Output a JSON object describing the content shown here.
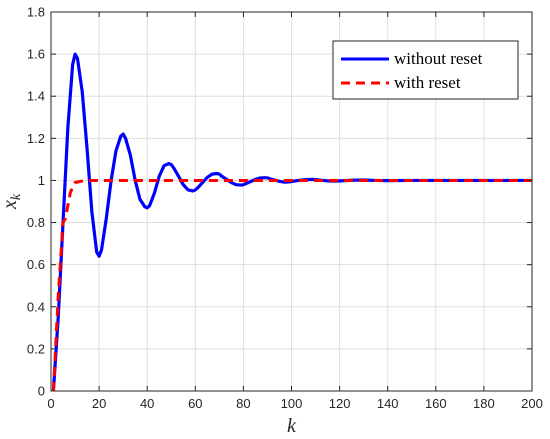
{
  "chart_data": {
    "type": "line",
    "xlabel": "k",
    "ylabel": {
      "base": "x",
      "sub": "k"
    },
    "xlim": [
      0,
      200
    ],
    "ylim": [
      0,
      1.8
    ],
    "xticks": [
      0,
      20,
      40,
      60,
      80,
      100,
      120,
      140,
      160,
      180,
      200
    ],
    "yticks": [
      0,
      0.2,
      0.4,
      0.6,
      0.8,
      1,
      1.2,
      1.4,
      1.6,
      1.8
    ],
    "xtick_labels": [
      "0",
      "20",
      "40",
      "60",
      "80",
      "100",
      "120",
      "140",
      "160",
      "180",
      "200"
    ],
    "ytick_labels": [
      "0",
      "0.2",
      "0.4",
      "0.6",
      "0.8",
      "1",
      "1.2",
      "1.4",
      "1.6",
      "1.8"
    ],
    "grid": true,
    "legend_position": "top-right",
    "series": [
      {
        "name": "without reset",
        "color": "#0000ff",
        "style": "solid",
        "x": [
          1,
          3,
          5,
          7,
          9,
          10,
          11,
          13,
          15,
          17,
          19,
          20,
          21,
          23,
          25,
          27,
          29,
          30,
          31,
          33,
          35,
          37,
          39,
          40,
          41,
          43,
          45,
          47,
          49,
          50,
          51,
          53,
          55,
          57,
          59,
          60,
          61,
          63,
          65,
          67,
          69,
          70,
          71,
          73,
          75,
          77,
          79,
          80,
          81,
          83,
          85,
          87,
          89,
          90,
          91,
          93,
          95,
          97,
          99,
          100,
          103,
          106,
          109,
          110,
          113,
          116,
          119,
          120,
          125,
          130,
          135,
          140,
          150,
          160,
          170,
          180,
          190,
          200
        ],
        "y": [
          0,
          0.35,
          0.8,
          1.25,
          1.55,
          1.6,
          1.58,
          1.42,
          1.15,
          0.85,
          0.66,
          0.64,
          0.67,
          0.82,
          1.0,
          1.14,
          1.21,
          1.22,
          1.2,
          1.12,
          1.0,
          0.91,
          0.875,
          0.87,
          0.88,
          0.94,
          1.02,
          1.07,
          1.08,
          1.075,
          1.06,
          1.02,
          0.98,
          0.955,
          0.95,
          0.955,
          0.965,
          0.99,
          1.015,
          1.03,
          1.033,
          1.03,
          1.02,
          1.005,
          0.99,
          0.98,
          0.978,
          0.98,
          0.985,
          0.995,
          1.005,
          1.012,
          1.013,
          1.012,
          1.008,
          1.002,
          0.996,
          0.992,
          0.993,
          0.995,
          1.0,
          1.004,
          1.005,
          1.004,
          1.0,
          0.997,
          0.997,
          0.998,
          1.001,
          1.002,
          1.0,
          0.999,
          1.0,
          1.0,
          1.0,
          1.0,
          1.0,
          1.0
        ]
      },
      {
        "name": "with reset",
        "color": "#ff0000",
        "style": "dashed",
        "x": [
          1,
          3,
          5,
          6,
          7,
          8,
          9,
          10,
          12,
          14,
          20,
          40,
          60,
          80,
          100,
          120,
          140,
          160,
          180,
          200
        ],
        "y": [
          0,
          0.45,
          0.8,
          0.82,
          0.88,
          0.94,
          0.97,
          0.99,
          0.995,
          1.0,
          1.0,
          1.0,
          1.0,
          1.0,
          1.0,
          1.0,
          1.0,
          1.0,
          1.0,
          1.0
        ]
      }
    ]
  }
}
